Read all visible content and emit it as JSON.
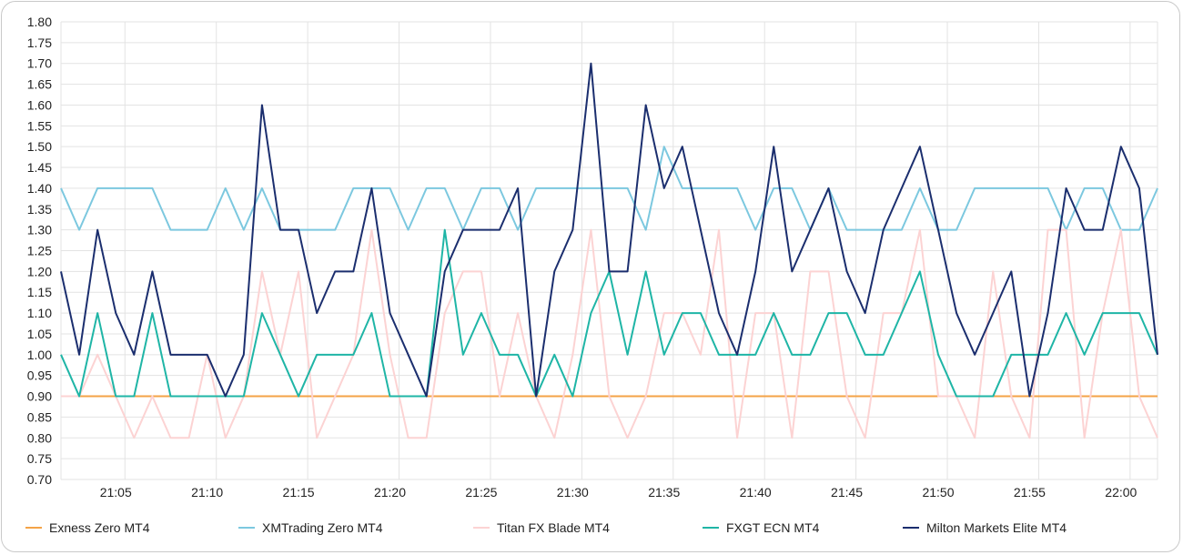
{
  "chart_data": {
    "type": "line",
    "title": "",
    "xlabel": "",
    "ylabel": "",
    "ylim": [
      0.7,
      1.8
    ],
    "ytick_step": 0.05,
    "x": [
      "21:02",
      "21:03",
      "21:04",
      "21:05",
      "21:06",
      "21:07",
      "21:08",
      "21:09",
      "21:10",
      "21:11",
      "21:12",
      "21:13",
      "21:14",
      "21:15",
      "21:16",
      "21:17",
      "21:18",
      "21:19",
      "21:20",
      "21:21",
      "21:22",
      "21:23",
      "21:24",
      "21:25",
      "21:26",
      "21:27",
      "21:28",
      "21:29",
      "21:30",
      "21:31",
      "21:32",
      "21:33",
      "21:34",
      "21:35",
      "21:36",
      "21:37",
      "21:38",
      "21:39",
      "21:40",
      "21:41",
      "21:42",
      "21:43",
      "21:44",
      "21:45",
      "21:46",
      "21:47",
      "21:48",
      "21:49",
      "21:50",
      "21:51",
      "21:52",
      "21:53",
      "21:54",
      "21:55",
      "21:56",
      "21:57",
      "21:58",
      "21:59",
      "22:00",
      "22:01",
      "22:02"
    ],
    "x_tick_labels": [
      "21:05",
      "21:10",
      "21:15",
      "21:20",
      "21:25",
      "21:30",
      "21:35",
      "21:40",
      "21:45",
      "21:50",
      "21:55",
      "22:00"
    ],
    "grid": true,
    "legend_position": "bottom",
    "series": [
      {
        "name": "Exness Zero MT4",
        "color": "#f4a347",
        "values": [
          0.9,
          0.9,
          0.9,
          0.9,
          0.9,
          0.9,
          0.9,
          0.9,
          0.9,
          0.9,
          0.9,
          0.9,
          0.9,
          0.9,
          0.9,
          0.9,
          0.9,
          0.9,
          0.9,
          0.9,
          0.9,
          0.9,
          0.9,
          0.9,
          0.9,
          0.9,
          0.9,
          0.9,
          0.9,
          0.9,
          0.9,
          0.9,
          0.9,
          0.9,
          0.9,
          0.9,
          0.9,
          0.9,
          0.9,
          0.9,
          0.9,
          0.9,
          0.9,
          0.9,
          0.9,
          0.9,
          0.9,
          0.9,
          0.9,
          0.9,
          0.9,
          0.9,
          0.9,
          0.9,
          0.9,
          0.9,
          0.9,
          0.9,
          0.9,
          0.9,
          0.9
        ]
      },
      {
        "name": "XMTrading Zero MT4",
        "color": "#7cc8df",
        "values": [
          1.4,
          1.3,
          1.4,
          1.4,
          1.4,
          1.4,
          1.3,
          1.3,
          1.3,
          1.4,
          1.3,
          1.4,
          1.3,
          1.3,
          1.3,
          1.3,
          1.4,
          1.4,
          1.4,
          1.3,
          1.4,
          1.4,
          1.3,
          1.4,
          1.4,
          1.3,
          1.4,
          1.4,
          1.4,
          1.4,
          1.4,
          1.4,
          1.3,
          1.5,
          1.4,
          1.4,
          1.4,
          1.4,
          1.3,
          1.4,
          1.4,
          1.3,
          1.4,
          1.3,
          1.3,
          1.3,
          1.3,
          1.4,
          1.3,
          1.3,
          1.4,
          1.4,
          1.4,
          1.4,
          1.4,
          1.3,
          1.4,
          1.4,
          1.3,
          1.3,
          1.4
        ]
      },
      {
        "name": "Titan FX Blade MT4",
        "color": "#fcd3d3",
        "values": [
          0.9,
          0.9,
          1.0,
          0.9,
          0.8,
          0.9,
          0.8,
          0.8,
          1.0,
          0.8,
          0.9,
          1.2,
          1.0,
          1.2,
          0.8,
          0.9,
          1.0,
          1.3,
          1.0,
          0.8,
          0.8,
          1.1,
          1.2,
          1.2,
          0.9,
          1.1,
          0.9,
          0.8,
          1.0,
          1.3,
          0.9,
          0.8,
          0.9,
          1.1,
          1.1,
          1.0,
          1.3,
          0.8,
          1.1,
          1.1,
          0.8,
          1.2,
          1.2,
          0.9,
          0.8,
          1.1,
          1.1,
          1.3,
          0.9,
          0.9,
          0.8,
          1.2,
          0.9,
          0.8,
          1.3,
          1.3,
          0.8,
          1.1,
          1.3,
          0.9,
          0.8
        ]
      },
      {
        "name": "FXGT ECN MT4",
        "color": "#1fb5a6",
        "values": [
          1.0,
          0.9,
          1.1,
          0.9,
          0.9,
          1.1,
          0.9,
          0.9,
          0.9,
          0.9,
          0.9,
          1.1,
          1.0,
          0.9,
          1.0,
          1.0,
          1.0,
          1.1,
          0.9,
          0.9,
          0.9,
          1.3,
          1.0,
          1.1,
          1.0,
          1.0,
          0.9,
          1.0,
          0.9,
          1.1,
          1.2,
          1.0,
          1.2,
          1.0,
          1.1,
          1.1,
          1.0,
          1.0,
          1.0,
          1.1,
          1.0,
          1.0,
          1.1,
          1.1,
          1.0,
          1.0,
          1.1,
          1.2,
          1.0,
          0.9,
          0.9,
          0.9,
          1.0,
          1.0,
          1.0,
          1.1,
          1.0,
          1.1,
          1.1,
          1.1,
          1.0
        ]
      },
      {
        "name": "Milton Markets Elite MT4",
        "color": "#1b2e6e",
        "values": [
          1.2,
          1.0,
          1.3,
          1.1,
          1.0,
          1.2,
          1.0,
          1.0,
          1.0,
          0.9,
          1.0,
          1.6,
          1.3,
          1.3,
          1.1,
          1.2,
          1.2,
          1.4,
          1.1,
          1.0,
          0.9,
          1.2,
          1.3,
          1.3,
          1.3,
          1.4,
          0.9,
          1.2,
          1.3,
          1.7,
          1.2,
          1.2,
          1.6,
          1.4,
          1.5,
          1.3,
          1.1,
          1.0,
          1.2,
          1.5,
          1.2,
          1.3,
          1.4,
          1.2,
          1.1,
          1.3,
          1.4,
          1.5,
          1.3,
          1.1,
          1.0,
          1.1,
          1.2,
          0.9,
          1.1,
          1.4,
          1.3,
          1.3,
          1.5,
          1.4,
          1.0
        ]
      }
    ]
  }
}
